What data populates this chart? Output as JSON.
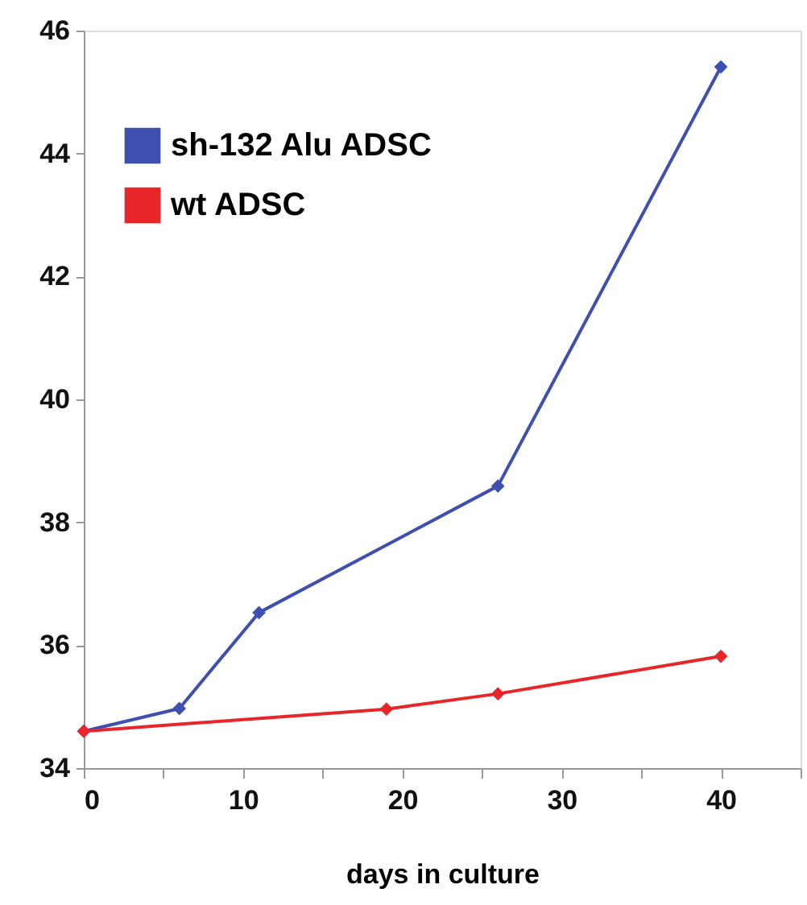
{
  "chart_data": {
    "type": "line",
    "xlabel": "days in culture",
    "series": [
      {
        "name": "sh-132 Alu ADSC",
        "color": "#3f4fb0",
        "x": [
          0,
          6,
          11,
          26,
          40
        ],
        "values": [
          34.6,
          34.97,
          36.53,
          38.59,
          45.41
        ]
      },
      {
        "name": "wt ADSC",
        "color": "#e8262a",
        "x": [
          0,
          19,
          26,
          40
        ],
        "values": [
          34.6,
          34.96,
          35.21,
          35.82
        ]
      }
    ],
    "xlim": [
      0,
      45
    ],
    "xticks": [
      0,
      {
        "value": 5,
        "label": null
      },
      10,
      {
        "value": 15,
        "label": null
      },
      20,
      {
        "value": 25,
        "label": null
      },
      30,
      {
        "value": 35,
        "label": null
      },
      40,
      {
        "value": 45,
        "label": null
      }
    ],
    "ylim": [
      34,
      46
    ],
    "yticks": [
      34,
      36,
      38,
      40,
      42,
      44,
      46
    ],
    "marker": "diamond",
    "line_style": "solid",
    "grid": false,
    "legend": "top left"
  }
}
